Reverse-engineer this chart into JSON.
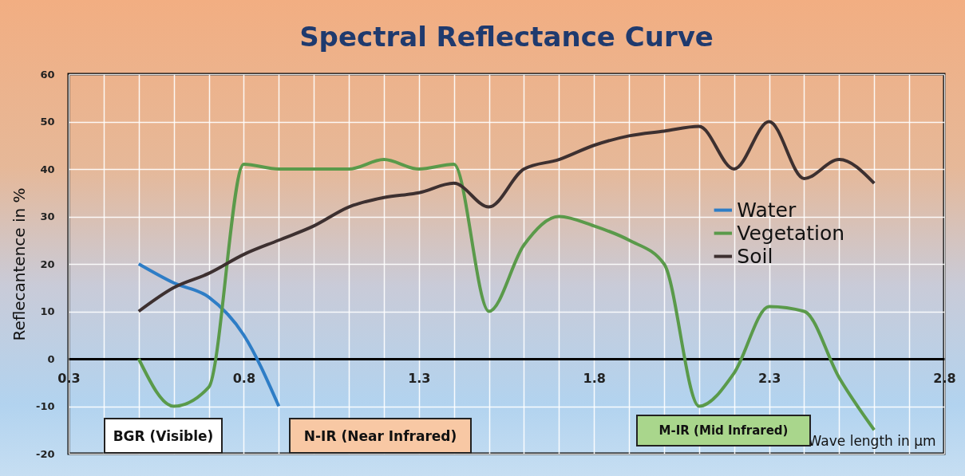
{
  "chart_data": {
    "type": "line",
    "title": "Spectral Reflectance Curve",
    "xlabel": "Wave length in  µm",
    "ylabel": "Reflecantence in %",
    "x": [
      0.5,
      0.6,
      0.7,
      0.8,
      0.9,
      1.0,
      1.1,
      1.2,
      1.3,
      1.4,
      1.5,
      1.6,
      1.7,
      1.8,
      1.9,
      2.0,
      2.1,
      2.2,
      2.3,
      2.4,
      2.5,
      2.6
    ],
    "series": [
      {
        "name": "Water",
        "color": "#2e7dc6",
        "values": [
          20,
          16,
          13,
          5,
          -10,
          null,
          null,
          null,
          null,
          null,
          null,
          null,
          null,
          null,
          null,
          null,
          null,
          null,
          null,
          null,
          null,
          null
        ]
      },
      {
        "name": "Vegetation",
        "color": "#5a9a4a",
        "values": [
          0,
          -10,
          -6,
          41,
          40,
          40,
          40,
          42,
          40,
          41,
          10,
          24,
          30,
          28,
          25,
          20,
          -10,
          -3,
          11,
          10,
          -4,
          -15
        ]
      },
      {
        "name": "Soil",
        "color": "#3d3030",
        "values": [
          10,
          15,
          18,
          22,
          25,
          28,
          32,
          34,
          35,
          37,
          32,
          40,
          42,
          45,
          47,
          48,
          49,
          40,
          50,
          38,
          42,
          37
        ]
      }
    ],
    "xlim": [
      0.3,
      2.8
    ],
    "xticks": [
      0.3,
      {
        "value": 0.4,
        "label": null
      },
      {
        "value": 0.5,
        "label": null
      },
      {
        "value": 0.6,
        "label": null
      },
      {
        "value": 0.7,
        "label": null
      },
      0.8,
      {
        "value": 0.9,
        "label": null
      },
      {
        "value": 1.0,
        "label": null
      },
      {
        "value": 1.1,
        "label": null
      },
      {
        "value": 1.2,
        "label": null
      },
      1.3,
      {
        "value": 1.4,
        "label": null
      },
      {
        "value": 1.5,
        "label": null
      },
      {
        "value": 1.6,
        "label": null
      },
      {
        "value": 1.7,
        "label": null
      },
      1.8,
      {
        "value": 1.9,
        "label": null
      },
      {
        "value": 2.0,
        "label": null
      },
      {
        "value": 2.1,
        "label": null
      },
      {
        "value": 2.2,
        "label": null
      },
      2.3,
      {
        "value": 2.4,
        "label": null
      },
      {
        "value": 2.5,
        "label": null
      },
      {
        "value": 2.6,
        "label": null
      },
      {
        "value": 2.7,
        "label": null
      },
      2.8
    ],
    "ylim": [
      -20,
      60
    ],
    "yticks": [
      -20,
      -10,
      0,
      10,
      20,
      30,
      40,
      50,
      60
    ],
    "grid": true,
    "legend": "right",
    "marker": "none",
    "line_style": "solid",
    "annotations": [
      "BGR (Visible)",
      "N-IR (Near Infrared)",
      "M-IR (Mid Infrared)"
    ]
  }
}
